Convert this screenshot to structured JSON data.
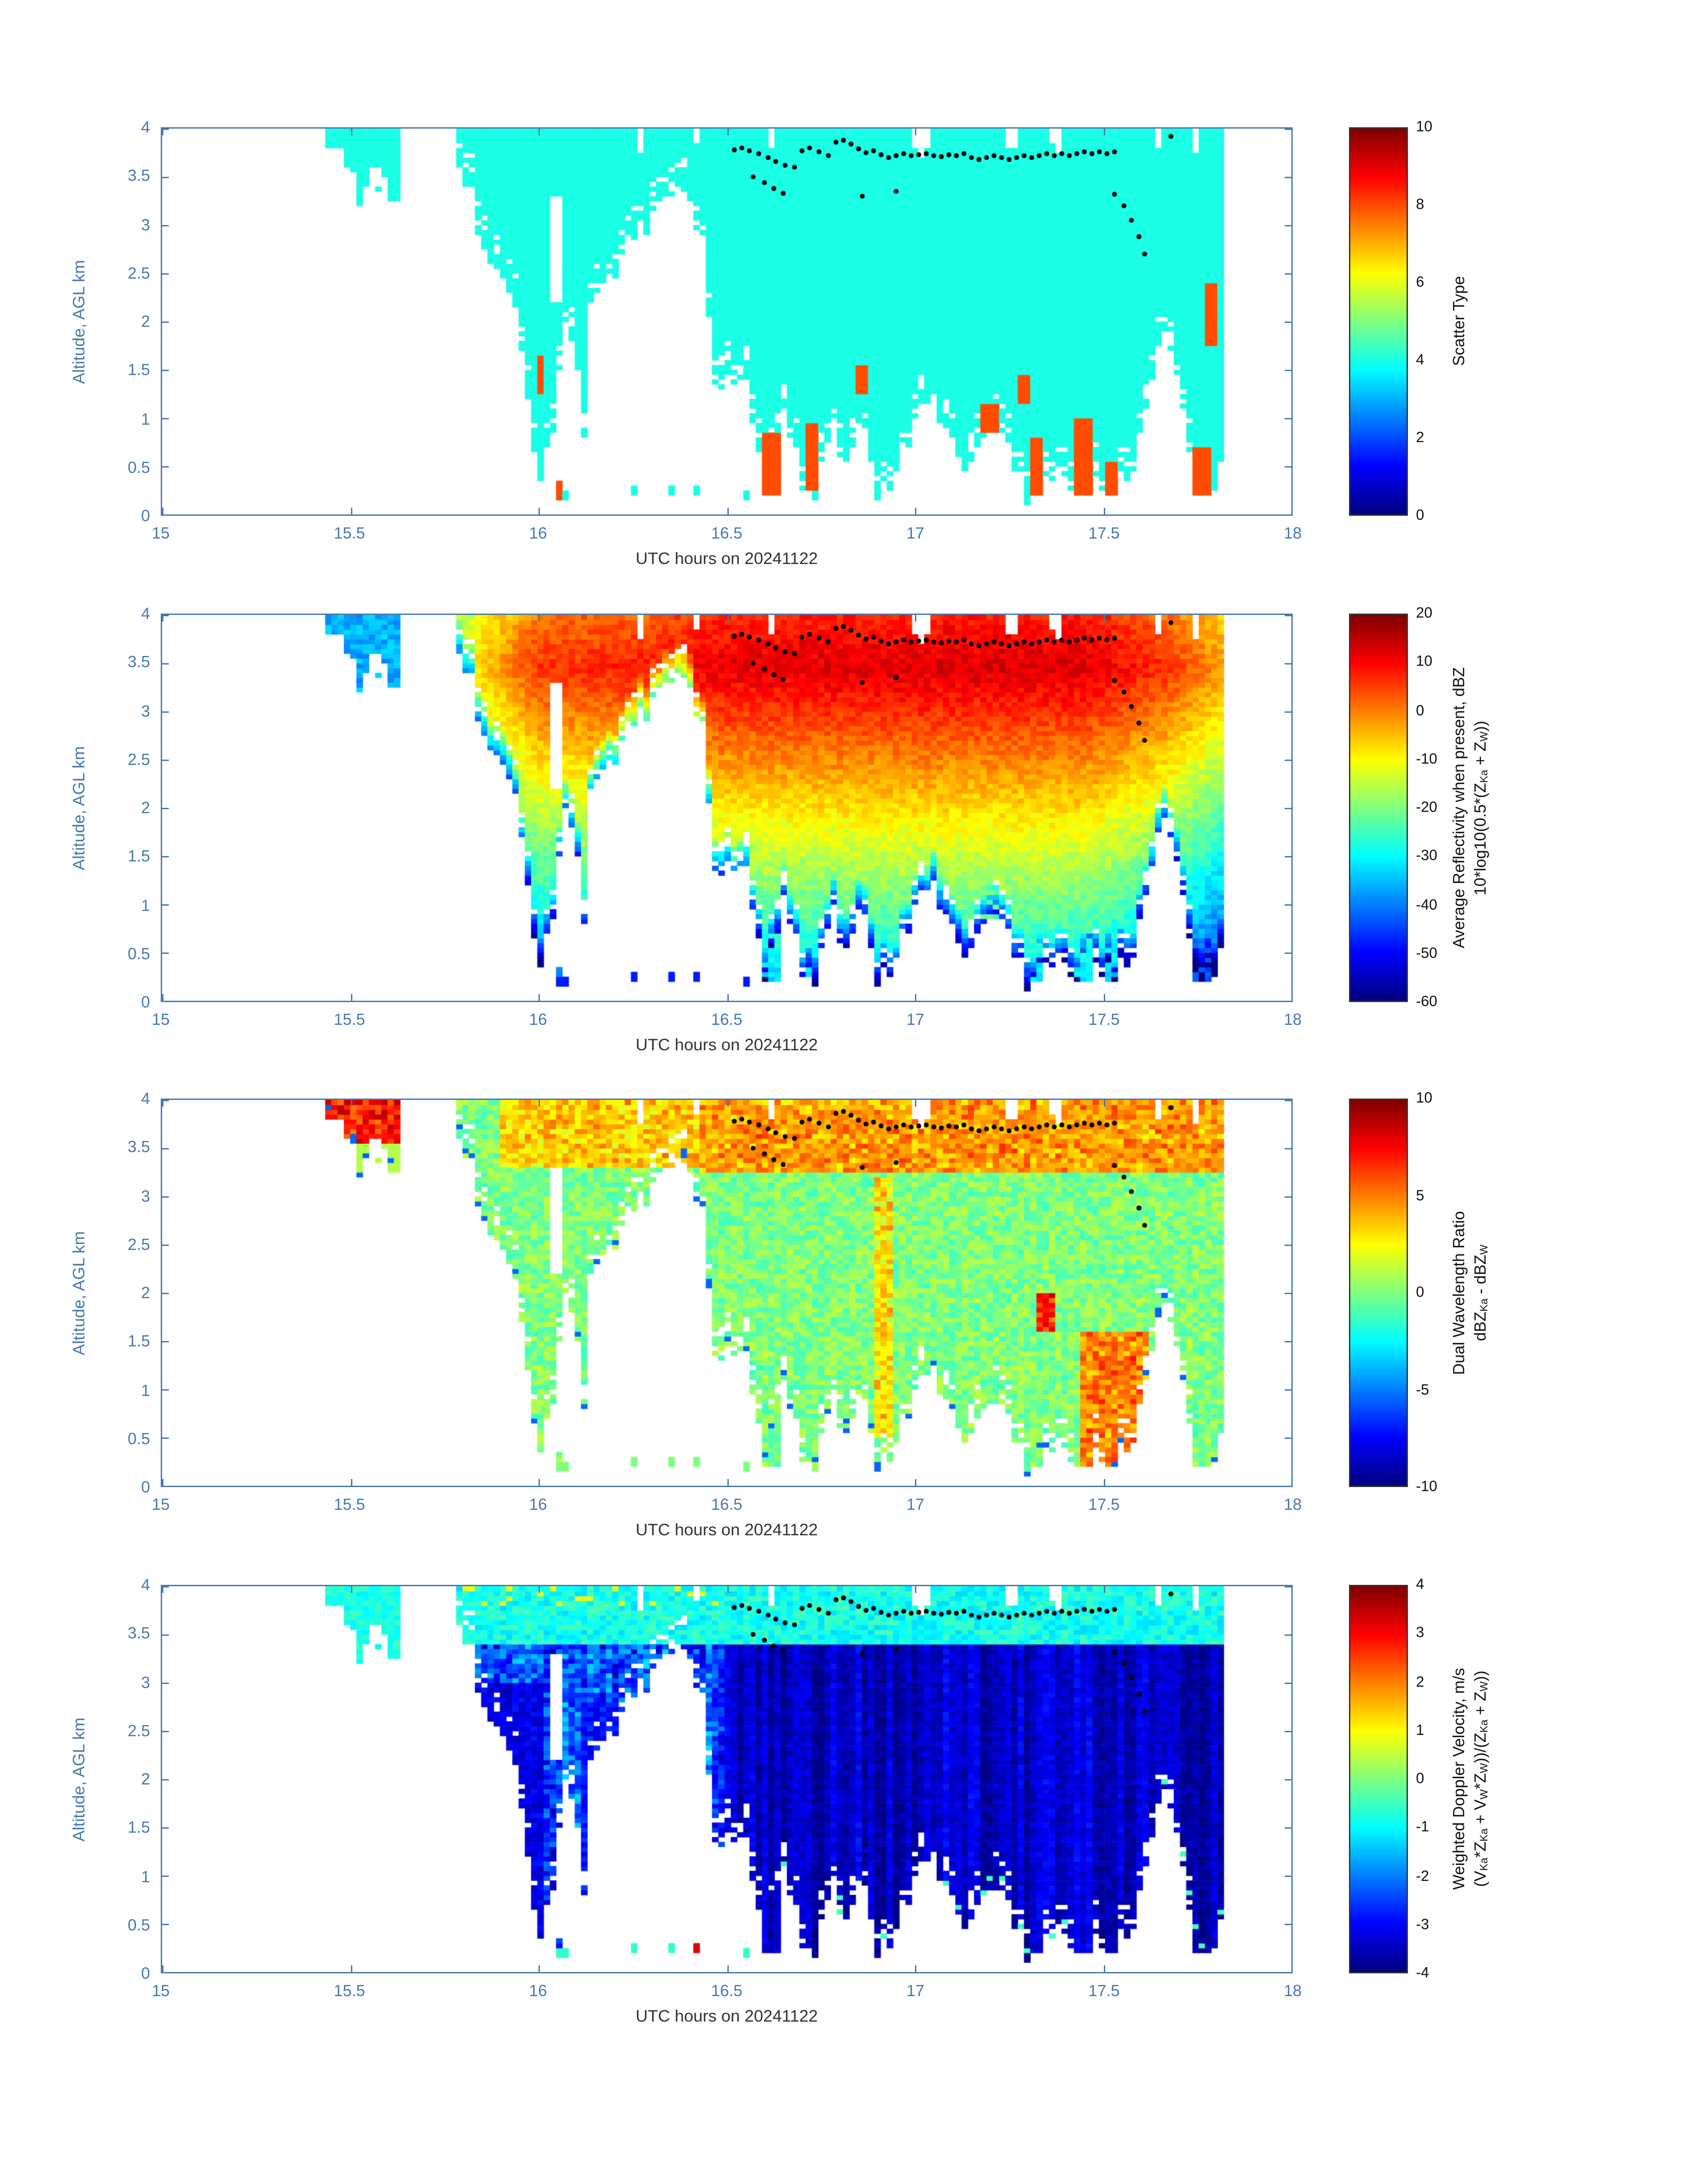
{
  "figure": {
    "background": "#ffffff",
    "axis_color": "#4878b0",
    "xlabel_color": "#333333",
    "dot_color": "#000000",
    "colormap": "jet"
  },
  "chart_data": {
    "type": "heatmap",
    "title": "",
    "x_label": "UTC hours on 20241122",
    "y_label": "Altitude, AGL km",
    "x_range": [
      15,
      18
    ],
    "y_range": [
      0,
      4
    ],
    "x_tick_values": [
      15,
      15.5,
      16,
      16.5,
      17,
      17.5,
      18
    ],
    "x_tick_labels": [
      "15",
      "15.5",
      "16",
      "16.5",
      "17",
      "17.5",
      "18"
    ],
    "y_tick_values": [
      0,
      0.5,
      1,
      1.5,
      2,
      2.5,
      3,
      3.5,
      4
    ],
    "y_tick_labels": [
      "0",
      "0.5",
      "1",
      "1.5",
      "2",
      "2.5",
      "3",
      "3.5",
      "4"
    ],
    "grid": {
      "t_start": 15.4,
      "t_end": 17.82,
      "nt": 146,
      "nz": 80
    },
    "cloud": {
      "deck_t": [
        15.78,
        17.82
      ],
      "base_points": [
        [
          15.78,
          3.85
        ],
        [
          15.8,
          3.45
        ],
        [
          15.83,
          3.2
        ],
        [
          15.86,
          2.75
        ],
        [
          15.9,
          2.45
        ],
        [
          15.94,
          2.1
        ],
        [
          15.97,
          1.35
        ],
        [
          16.0,
          0.25
        ],
        [
          16.03,
          0.55
        ],
        [
          16.05,
          1.3
        ],
        [
          16.08,
          2.1
        ],
        [
          16.1,
          1.6
        ],
        [
          16.12,
          0.7
        ],
        [
          16.14,
          2.2
        ],
        [
          16.18,
          2.4
        ],
        [
          16.22,
          2.55
        ],
        [
          16.26,
          2.9
        ],
        [
          16.3,
          3.1
        ],
        [
          16.34,
          3.25
        ],
        [
          16.38,
          3.3
        ],
        [
          16.42,
          3.0
        ],
        [
          16.44,
          2.85
        ],
        [
          16.47,
          1.2
        ],
        [
          16.5,
          1.35
        ],
        [
          16.53,
          1.45
        ],
        [
          16.56,
          1.3
        ],
        [
          16.6,
          0.22
        ],
        [
          16.63,
          0.8
        ],
        [
          16.66,
          1.1
        ],
        [
          16.7,
          0.25
        ],
        [
          16.74,
          0.3
        ],
        [
          16.78,
          0.9
        ],
        [
          16.82,
          0.6
        ],
        [
          16.86,
          0.9
        ],
        [
          16.9,
          0.25
        ],
        [
          16.94,
          0.22
        ],
        [
          16.98,
          0.8
        ],
        [
          17.02,
          1.2
        ],
        [
          17.06,
          1.1
        ],
        [
          17.1,
          0.6
        ],
        [
          17.14,
          0.5
        ],
        [
          17.18,
          0.8
        ],
        [
          17.22,
          0.9
        ],
        [
          17.26,
          0.4
        ],
        [
          17.3,
          0.25
        ],
        [
          17.34,
          0.3
        ],
        [
          17.38,
          0.5
        ],
        [
          17.42,
          0.25
        ],
        [
          17.46,
          0.4
        ],
        [
          17.5,
          0.25
        ],
        [
          17.54,
          0.3
        ],
        [
          17.58,
          0.5
        ],
        [
          17.62,
          1.3
        ],
        [
          17.66,
          1.9
        ],
        [
          17.7,
          1.5
        ],
        [
          17.74,
          0.4
        ],
        [
          17.78,
          0.25
        ],
        [
          17.82,
          0.5
        ]
      ],
      "blobs": [
        [
          15.43,
          15.475,
          3.82,
          4.0,
          0
        ],
        [
          15.49,
          15.635,
          3.18,
          4.0,
          1
        ]
      ],
      "gaps": [
        [
          16.03,
          16.065,
          2.2,
          3.3
        ],
        [
          15.545,
          15.585,
          3.4,
          3.62
        ]
      ],
      "rain_regions": [
        [
          15.995,
          16.015,
          1.25,
          1.65
        ],
        [
          16.04,
          16.062,
          0.15,
          0.35
        ],
        [
          16.57,
          16.585,
          0.2,
          0.3
        ],
        [
          16.6,
          16.635,
          0.2,
          0.85
        ],
        [
          16.71,
          16.745,
          0.25,
          0.95
        ],
        [
          16.85,
          16.875,
          1.25,
          1.55
        ],
        [
          17.18,
          17.215,
          0.85,
          1.15
        ],
        [
          17.27,
          17.3,
          1.15,
          1.45
        ],
        [
          17.3,
          17.345,
          0.2,
          0.8
        ],
        [
          17.42,
          17.47,
          0.2,
          1.0
        ],
        [
          17.5,
          17.535,
          0.2,
          0.55
        ],
        [
          17.74,
          17.795,
          0.2,
          0.7
        ],
        [
          17.765,
          17.8,
          1.75,
          2.4
        ]
      ],
      "specks": [
        [
          16.06,
          0.22,
          -0.6
        ],
        [
          16.25,
          0.25,
          -0.6
        ],
        [
          16.355,
          0.25,
          -0.6
        ],
        [
          16.42,
          0.25,
          3.2
        ],
        [
          16.55,
          0.22,
          -0.6
        ]
      ]
    },
    "dots": [
      [
        16.52,
        3.78
      ],
      [
        16.54,
        3.8
      ],
      [
        16.56,
        3.77
      ],
      [
        16.585,
        3.74
      ],
      [
        16.61,
        3.7
      ],
      [
        16.63,
        3.66
      ],
      [
        16.655,
        3.62
      ],
      [
        16.68,
        3.6
      ],
      [
        16.7,
        3.77
      ],
      [
        16.72,
        3.8
      ],
      [
        16.745,
        3.76
      ],
      [
        16.77,
        3.72
      ],
      [
        16.79,
        3.86
      ],
      [
        16.81,
        3.88
      ],
      [
        16.83,
        3.84
      ],
      [
        16.85,
        3.79
      ],
      [
        16.87,
        3.75
      ],
      [
        16.89,
        3.77
      ],
      [
        16.91,
        3.73
      ],
      [
        16.93,
        3.7
      ],
      [
        16.95,
        3.72
      ],
      [
        16.97,
        3.74
      ],
      [
        16.99,
        3.72
      ],
      [
        17.01,
        3.73
      ],
      [
        17.03,
        3.74
      ],
      [
        17.05,
        3.72
      ],
      [
        17.07,
        3.71
      ],
      [
        17.09,
        3.73
      ],
      [
        17.11,
        3.72
      ],
      [
        17.13,
        3.74
      ],
      [
        17.15,
        3.7
      ],
      [
        17.17,
        3.68
      ],
      [
        17.19,
        3.7
      ],
      [
        17.21,
        3.72
      ],
      [
        17.23,
        3.7
      ],
      [
        17.25,
        3.68
      ],
      [
        17.27,
        3.7
      ],
      [
        17.29,
        3.72
      ],
      [
        17.31,
        3.7
      ],
      [
        17.33,
        3.72
      ],
      [
        17.35,
        3.74
      ],
      [
        17.37,
        3.72
      ],
      [
        17.39,
        3.74
      ],
      [
        17.41,
        3.72
      ],
      [
        17.43,
        3.74
      ],
      [
        17.45,
        3.76
      ],
      [
        17.47,
        3.74
      ],
      [
        17.49,
        3.76
      ],
      [
        17.51,
        3.74
      ],
      [
        17.53,
        3.76
      ],
      [
        16.57,
        3.5
      ],
      [
        16.6,
        3.44
      ],
      [
        16.625,
        3.38
      ],
      [
        16.65,
        3.33
      ],
      [
        16.86,
        3.3
      ],
      [
        16.95,
        3.35
      ],
      [
        17.53,
        3.32
      ],
      [
        17.555,
        3.2
      ],
      [
        17.575,
        3.05
      ],
      [
        17.595,
        2.88
      ],
      [
        17.61,
        2.7
      ],
      [
        17.68,
        3.92
      ]
    ],
    "panels": [
      {
        "name": "Scatter Type",
        "colorbar": {
          "range": [
            0,
            10
          ],
          "ticks": [
            0,
            2,
            4,
            6,
            8,
            10
          ],
          "title1": "Scatter Type",
          "title2": ""
        },
        "model": {
          "type": "category",
          "cloud_value": 4,
          "rain_value": 8
        }
      },
      {
        "name": "Average Reflectivity",
        "colorbar": {
          "range": [
            -60,
            20
          ],
          "ticks": [
            20,
            10,
            0,
            -10,
            -20,
            -30,
            -40,
            -50,
            -60
          ],
          "title1": "Average Reflectivity when present, dBZ",
          "title2": "10*log10(0.5*(Z_{Ka} + Z_{W}))"
        },
        "model": {
          "type": "reflectivity",
          "peak_curve": [
            [
              15.78,
              -12
            ],
            [
              15.9,
              -2
            ],
            [
              16.0,
              6
            ],
            [
              16.3,
              8
            ],
            [
              16.5,
              12
            ],
            [
              17.0,
              13
            ],
            [
              17.45,
              13
            ],
            [
              17.65,
              7
            ],
            [
              17.82,
              -2
            ]
          ],
          "z_peak": 3.45,
          "lapse_down": 14,
          "lapse_up": 9,
          "edge_depth": 0.35,
          "edge_drop": 28,
          "noise": 6,
          "blob_value": -36,
          "speck_value": -48
        }
      },
      {
        "name": "Dual Wavelength Ratio",
        "colorbar": {
          "range": [
            -10,
            10
          ],
          "ticks": [
            10,
            5,
            0,
            -5,
            -10
          ],
          "title1": "Dual Wavelength Ratio",
          "title2": "dBZ_{Ka} - dBZ_{W}"
        },
        "model": {
          "type": "dwr",
          "noise": 2.6,
          "bands": [
            [
              16.42,
              17.82,
              3.25,
              4.0,
              4.5
            ],
            [
              15.9,
              16.42,
              3.3,
              4.0,
              3.5
            ],
            [
              17.44,
              17.62,
              0.2,
              1.6,
              5
            ],
            [
              16.9,
              16.94,
              0.5,
              3.2,
              3
            ],
            [
              17.32,
              17.37,
              1.6,
              2.0,
              7
            ],
            [
              15.49,
              15.6,
              3.55,
              4.0,
              8
            ]
          ],
          "edge_speck": -5.5
        }
      },
      {
        "name": "Weighted Doppler Velocity",
        "colorbar": {
          "range": [
            -4,
            4
          ],
          "ticks": [
            4,
            3,
            2,
            1,
            0,
            -1,
            -2,
            -3,
            -4
          ],
          "title1": "Weighted Doppler Velocity, m/s",
          "title2": "(V_{Ka}*Z_{Ka} + V_{W}*Z_{W}))/(Z_{Ka} + Z_{W}))"
        },
        "model": {
          "type": "velocity",
          "upper_z": 3.38,
          "upper_value": -0.85,
          "deep_value": -3.45,
          "mid_value": -2.4,
          "deep_t_start": 16.5,
          "pockets": [
            [
              15.83,
              16.01,
              0,
              3.0,
              -3.2
            ],
            [
              16.12,
              16.36,
              0,
              2.8,
              -2.9
            ]
          ]
        }
      }
    ]
  }
}
